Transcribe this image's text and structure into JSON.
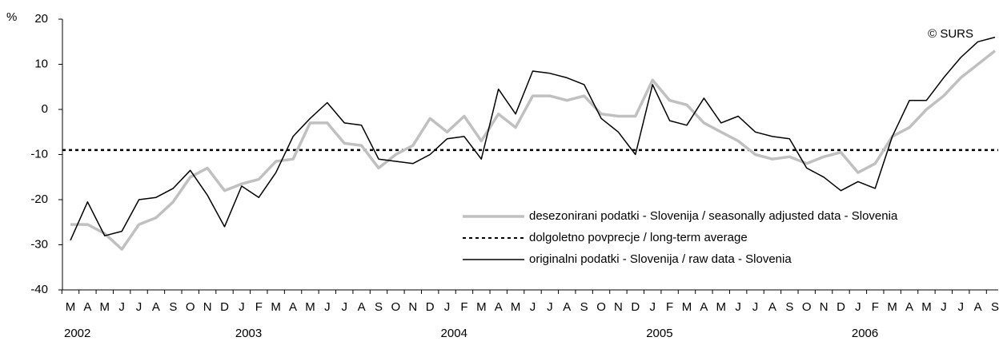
{
  "chart_data": {
    "type": "line",
    "y_unit": "%",
    "annotation": "© SURS",
    "categories": [
      "M",
      "A",
      "M",
      "J",
      "J",
      "A",
      "S",
      "O",
      "N",
      "D",
      "J",
      "F",
      "M",
      "A",
      "M",
      "J",
      "J",
      "A",
      "S",
      "O",
      "N",
      "D",
      "J",
      "F",
      "M",
      "A",
      "M",
      "J",
      "J",
      "A",
      "S",
      "O",
      "N",
      "D",
      "J",
      "F",
      "M",
      "A",
      "M",
      "J",
      "J",
      "A",
      "S",
      "O",
      "N",
      "D",
      "J",
      "F",
      "M",
      "A",
      "M",
      "J",
      "J",
      "A",
      "S"
    ],
    "years": [
      "2002",
      null,
      null,
      null,
      null,
      null,
      null,
      null,
      null,
      null,
      "2003",
      null,
      null,
      null,
      null,
      null,
      null,
      null,
      null,
      null,
      null,
      null,
      "2004",
      null,
      null,
      null,
      null,
      null,
      null,
      null,
      null,
      null,
      null,
      null,
      "2005",
      null,
      null,
      null,
      null,
      null,
      null,
      null,
      null,
      null,
      null,
      null,
      "2006",
      null,
      null,
      null,
      null,
      null,
      null,
      null,
      null
    ],
    "ylim": [
      -40,
      20
    ],
    "yticks": [
      -40,
      -30,
      -20,
      -10,
      0,
      10,
      20
    ],
    "series": [
      {
        "name": "desezonirani podatki - Slovenija / seasonally adjusted data - Slovenia",
        "color": "#c0c0c0",
        "values": [
          -25.5,
          -25.5,
          -27.5,
          -31,
          -25.5,
          -24,
          -20.5,
          -15,
          -13,
          -18,
          -16.5,
          -15.5,
          -11.5,
          -11,
          -3,
          -3,
          -7.5,
          -8,
          -13,
          -10,
          -8,
          -2,
          -5,
          -1.5,
          -7,
          -1,
          -4,
          3,
          3,
          2,
          3,
          -1,
          -1.5,
          -1.5,
          6.5,
          2,
          1,
          -3,
          -5,
          -7,
          -10,
          -11,
          -10.5,
          -12,
          -10.5,
          -9.5,
          -14,
          -12,
          -6,
          -4,
          0,
          3,
          7,
          10,
          13
        ]
      },
      {
        "name": "originalni podatki - Slovenija / raw data - Slovenia",
        "color": "#000000",
        "values": [
          -29,
          -20.5,
          -28,
          -27,
          -20,
          -19.5,
          -17.5,
          -13.5,
          -19,
          -26,
          -17,
          -19.5,
          -14,
          -6,
          -2,
          1.5,
          -3,
          -3.5,
          -11,
          -11.5,
          -12,
          -10,
          -6.5,
          -6,
          -11,
          4.5,
          -1,
          8.5,
          8,
          7,
          5.5,
          -2,
          -5,
          -10,
          5.5,
          -2.5,
          -3.5,
          2.5,
          -3,
          -1.5,
          -5,
          -6,
          -6.5,
          -13,
          -15,
          -18,
          -16,
          -17.5,
          -6,
          2,
          2,
          7,
          11.5,
          15,
          16
        ]
      }
    ],
    "reference": {
      "name": "dolgoletno povprecje / long-term average",
      "value": -9,
      "color": "#000000"
    }
  }
}
